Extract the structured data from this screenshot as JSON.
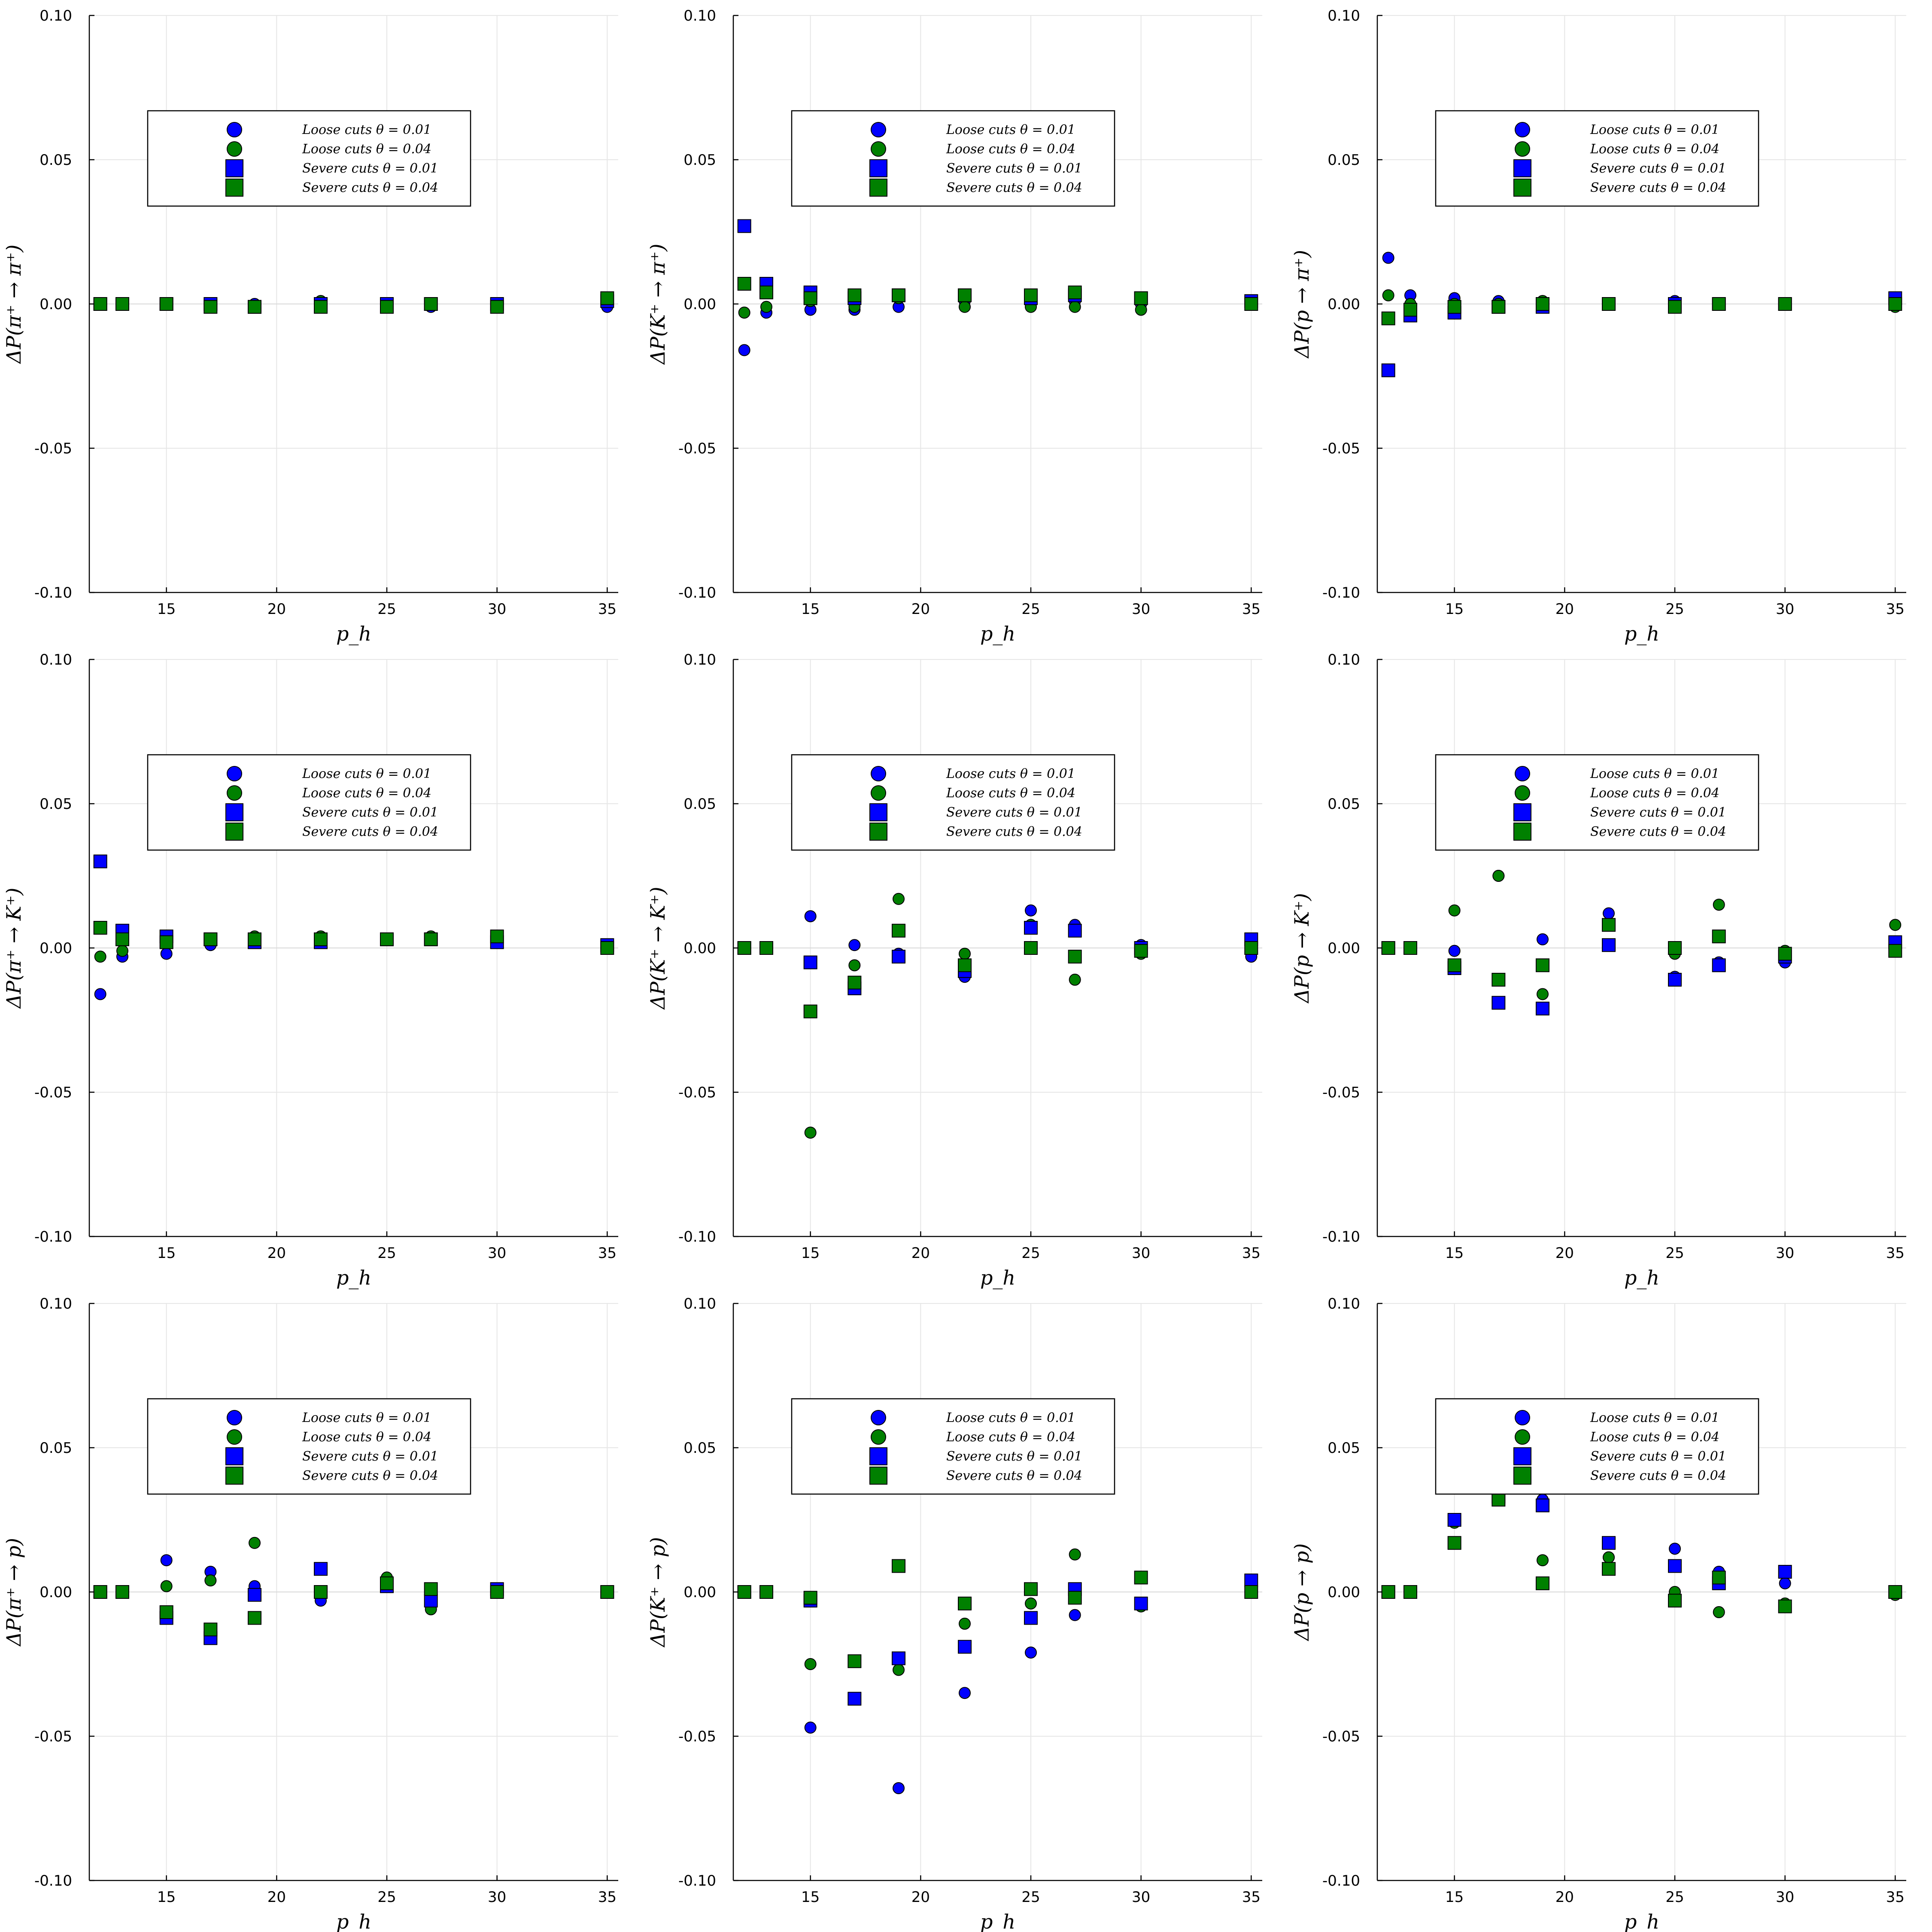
{
  "colors": {
    "loose_01": "#0000ff",
    "loose_04": "#008000",
    "severe_01": "#0000ff",
    "severe_04": "#008000"
  },
  "legend": [
    "Loose cuts θ = 0.01",
    "Loose cuts θ = 0.04",
    "Severe cuts θ = 0.01",
    "Severe cuts θ = 0.04"
  ],
  "chart_data": [
    {
      "type": "scatter",
      "ylabel": "ΔP(π⁺ → π⁺)",
      "xlabel": "p_h",
      "xlim": [
        11.5,
        35.5
      ],
      "ylim": [
        -0.1,
        0.1
      ],
      "xticks": [
        "15",
        "20",
        "25",
        "30",
        "35"
      ],
      "yticks": [
        "0.10",
        "0.05",
        "0.00",
        "-0.05",
        "-0.10"
      ],
      "x": [
        12,
        13,
        15,
        17,
        19,
        22,
        25,
        27,
        30,
        35
      ],
      "series": [
        {
          "name": "Loose cuts θ = 0.01",
          "marker": "circle",
          "values": [
            0.0,
            0.0,
            0.0,
            0.0,
            0.0,
            0.001,
            0.0,
            -0.001,
            0.0,
            -0.001
          ]
        },
        {
          "name": "Loose cuts θ = 0.04",
          "marker": "circle",
          "values": [
            0.0,
            0.0,
            0.0,
            0.0,
            -0.001,
            0.001,
            0.0,
            0.0,
            -0.001,
            0.001
          ]
        },
        {
          "name": "Severe cuts θ = 0.01",
          "marker": "square",
          "values": [
            0.0,
            0.0,
            0.0,
            0.0,
            -0.001,
            0.0,
            0.0,
            0.0,
            0.0,
            0.001
          ]
        },
        {
          "name": "Severe cuts θ = 0.04",
          "marker": "square",
          "values": [
            0.0,
            0.0,
            0.0,
            -0.001,
            -0.001,
            -0.001,
            -0.001,
            0.0,
            -0.001,
            0.002
          ]
        }
      ]
    },
    {
      "type": "scatter",
      "ylabel": "ΔP(K⁺ → π⁺)",
      "xlabel": "p_h",
      "xlim": [
        11.5,
        35.5
      ],
      "ylim": [
        -0.1,
        0.1
      ],
      "xticks": [
        "15",
        "20",
        "25",
        "30",
        "35"
      ],
      "yticks": [
        "0.10",
        "0.05",
        "0.00",
        "-0.05",
        "-0.10"
      ],
      "x": [
        12,
        13,
        15,
        17,
        19,
        22,
        25,
        27,
        30,
        35
      ],
      "series": [
        {
          "name": "Loose cuts θ = 0.01",
          "marker": "circle",
          "values": [
            -0.016,
            -0.003,
            -0.002,
            -0.002,
            -0.001,
            0.001,
            0.0,
            0.001,
            0.0,
            0.0
          ]
        },
        {
          "name": "Loose cuts θ = 0.04",
          "marker": "circle",
          "values": [
            -0.003,
            -0.001,
            0.001,
            -0.001,
            0.002,
            -0.001,
            -0.001,
            -0.001,
            -0.002,
            0.0
          ]
        },
        {
          "name": "Severe cuts θ = 0.01",
          "marker": "square",
          "values": [
            0.027,
            0.007,
            0.004,
            0.002,
            0.003,
            0.003,
            0.002,
            0.003,
            0.002,
            0.001
          ]
        },
        {
          "name": "Severe cuts θ = 0.04",
          "marker": "square",
          "values": [
            0.007,
            0.004,
            0.002,
            0.003,
            0.003,
            0.003,
            0.003,
            0.004,
            0.002,
            0.0
          ]
        }
      ]
    },
    {
      "type": "scatter",
      "ylabel": "ΔP(p → π⁺)",
      "xlabel": "p_h",
      "xlim": [
        11.5,
        35.5
      ],
      "ylim": [
        -0.1,
        0.1
      ],
      "xticks": [
        "15",
        "20",
        "25",
        "30",
        "35"
      ],
      "yticks": [
        "0.10",
        "0.05",
        "0.00",
        "-0.05",
        "-0.10"
      ],
      "x": [
        12,
        13,
        15,
        17,
        19,
        22,
        25,
        27,
        30,
        35
      ],
      "series": [
        {
          "name": "Loose cuts θ = 0.01",
          "marker": "circle",
          "values": [
            0.016,
            0.003,
            0.002,
            0.001,
            0.001,
            0.0,
            0.001,
            0.0,
            0.0,
            0.001
          ]
        },
        {
          "name": "Loose cuts θ = 0.04",
          "marker": "circle",
          "values": [
            0.003,
            0.0,
            0.0,
            0.0,
            0.001,
            0.0,
            0.0,
            0.0,
            0.0,
            -0.001
          ]
        },
        {
          "name": "Severe cuts θ = 0.01",
          "marker": "square",
          "values": [
            -0.023,
            -0.004,
            -0.003,
            -0.001,
            -0.001,
            0.0,
            0.0,
            0.0,
            0.0,
            0.002
          ]
        },
        {
          "name": "Severe cuts θ = 0.04",
          "marker": "square",
          "values": [
            -0.005,
            -0.002,
            -0.001,
            -0.001,
            0.0,
            0.0,
            -0.001,
            0.0,
            0.0,
            0.0
          ]
        }
      ]
    },
    {
      "type": "scatter",
      "ylabel": "ΔP(π⁺ → K⁺)",
      "xlabel": "p_h",
      "xlim": [
        11.5,
        35.5
      ],
      "ylim": [
        -0.1,
        0.1
      ],
      "xticks": [
        "15",
        "20",
        "25",
        "30",
        "35"
      ],
      "yticks": [
        "0.10",
        "0.05",
        "0.00",
        "-0.05",
        "-0.10"
      ],
      "x": [
        12,
        13,
        15,
        17,
        19,
        22,
        25,
        27,
        30,
        35
      ],
      "series": [
        {
          "name": "Loose cuts θ = 0.01",
          "marker": "circle",
          "values": [
            -0.016,
            -0.003,
            -0.002,
            0.001,
            0.002,
            0.002,
            0.003,
            0.003,
            0.002,
            0.001
          ]
        },
        {
          "name": "Loose cuts θ = 0.04",
          "marker": "circle",
          "values": [
            -0.003,
            -0.001,
            0.002,
            0.003,
            0.004,
            0.004,
            0.003,
            0.004,
            0.004,
            0.0
          ]
        },
        {
          "name": "Severe cuts θ = 0.01",
          "marker": "square",
          "values": [
            0.03,
            0.006,
            0.004,
            0.003,
            0.002,
            0.002,
            0.003,
            0.003,
            0.002,
            0.001
          ]
        },
        {
          "name": "Severe cuts θ = 0.04",
          "marker": "square",
          "values": [
            0.007,
            0.003,
            0.002,
            0.003,
            0.003,
            0.003,
            0.003,
            0.003,
            0.004,
            0.0
          ]
        }
      ]
    },
    {
      "type": "scatter",
      "ylabel": "ΔP(K⁺ → K⁺)",
      "xlabel": "p_h",
      "xlim": [
        11.5,
        35.5
      ],
      "ylim": [
        -0.1,
        0.1
      ],
      "xticks": [
        "15",
        "20",
        "25",
        "30",
        "35"
      ],
      "yticks": [
        "0.10",
        "0.05",
        "0.00",
        "-0.05",
        "-0.10"
      ],
      "x": [
        12,
        13,
        15,
        17,
        19,
        22,
        25,
        27,
        30,
        35
      ],
      "series": [
        {
          "name": "Loose cuts θ = 0.01",
          "marker": "circle",
          "values": [
            0.0,
            0.0,
            0.011,
            0.001,
            -0.002,
            -0.01,
            0.013,
            0.008,
            0.001,
            -0.003
          ]
        },
        {
          "name": "Loose cuts θ = 0.04",
          "marker": "circle",
          "values": [
            0.0,
            0.0,
            -0.064,
            -0.006,
            0.017,
            -0.002,
            0.008,
            -0.011,
            -0.002,
            0.001
          ]
        },
        {
          "name": "Severe cuts θ = 0.01",
          "marker": "square",
          "values": [
            0.0,
            0.0,
            -0.005,
            -0.014,
            -0.003,
            -0.008,
            0.007,
            0.006,
            0.0,
            0.003
          ]
        },
        {
          "name": "Severe cuts θ = 0.04",
          "marker": "square",
          "values": [
            0.0,
            0.0,
            -0.022,
            -0.012,
            0.006,
            -0.006,
            0.0,
            -0.003,
            -0.001,
            0.0
          ]
        }
      ]
    },
    {
      "type": "scatter",
      "ylabel": "ΔP(p → K⁺)",
      "xlabel": "p_h",
      "xlim": [
        11.5,
        35.5
      ],
      "ylim": [
        -0.1,
        0.1
      ],
      "xticks": [
        "15",
        "20",
        "25",
        "30",
        "35"
      ],
      "yticks": [
        "0.10",
        "0.05",
        "0.00",
        "-0.05",
        "-0.10"
      ],
      "x": [
        12,
        13,
        15,
        17,
        19,
        22,
        25,
        27,
        30,
        35
      ],
      "series": [
        {
          "name": "Loose cuts θ = 0.01",
          "marker": "circle",
          "values": [
            0.0,
            0.0,
            -0.001,
            0.025,
            0.003,
            0.012,
            -0.01,
            -0.005,
            -0.005,
            -0.001
          ]
        },
        {
          "name": "Loose cuts θ = 0.04",
          "marker": "circle",
          "values": [
            0.0,
            0.0,
            0.013,
            0.025,
            -0.016,
            0.008,
            -0.002,
            0.015,
            -0.001,
            0.008
          ]
        },
        {
          "name": "Severe cuts θ = 0.01",
          "marker": "square",
          "values": [
            0.0,
            0.0,
            -0.007,
            -0.019,
            -0.021,
            0.001,
            -0.011,
            -0.006,
            -0.003,
            0.002
          ]
        },
        {
          "name": "Severe cuts θ = 0.04",
          "marker": "square",
          "values": [
            0.0,
            0.0,
            -0.006,
            -0.011,
            -0.006,
            0.008,
            0.0,
            0.004,
            -0.002,
            -0.001
          ]
        }
      ]
    },
    {
      "type": "scatter",
      "ylabel": "ΔP(π⁺ → p)",
      "xlabel": "p_h",
      "xlim": [
        11.5,
        35.5
      ],
      "ylim": [
        -0.1,
        0.1
      ],
      "xticks": [
        "15",
        "20",
        "25",
        "30",
        "35"
      ],
      "yticks": [
        "0.10",
        "0.05",
        "0.00",
        "-0.05",
        "-0.10"
      ],
      "x": [
        12,
        13,
        15,
        17,
        19,
        22,
        25,
        27,
        30,
        35
      ],
      "series": [
        {
          "name": "Loose cuts θ = 0.01",
          "marker": "circle",
          "values": [
            0.0,
            0.0,
            0.011,
            0.007,
            0.002,
            -0.003,
            0.003,
            -0.001,
            0.0,
            0.0
          ]
        },
        {
          "name": "Loose cuts θ = 0.04",
          "marker": "circle",
          "values": [
            0.0,
            0.0,
            0.002,
            0.004,
            0.017,
            0.0,
            0.005,
            -0.006,
            0.0,
            0.0
          ]
        },
        {
          "name": "Severe cuts θ = 0.01",
          "marker": "square",
          "values": [
            0.0,
            0.0,
            -0.009,
            -0.016,
            -0.001,
            0.008,
            0.002,
            -0.003,
            0.001,
            0.0
          ]
        },
        {
          "name": "Severe cuts θ = 0.04",
          "marker": "square",
          "values": [
            0.0,
            0.0,
            -0.007,
            -0.013,
            -0.009,
            0.0,
            0.003,
            0.001,
            0.0,
            0.0
          ]
        }
      ]
    },
    {
      "type": "scatter",
      "ylabel": "ΔP(K⁺ → p)",
      "xlabel": "p_h",
      "xlim": [
        11.5,
        35.5
      ],
      "ylim": [
        -0.1,
        0.1
      ],
      "xticks": [
        "15",
        "20",
        "25",
        "30",
        "35"
      ],
      "yticks": [
        "0.10",
        "0.05",
        "0.00",
        "-0.05",
        "-0.10"
      ],
      "x": [
        12,
        13,
        15,
        17,
        19,
        22,
        25,
        27,
        30,
        35
      ],
      "series": [
        {
          "name": "Loose cuts θ = 0.01",
          "marker": "circle",
          "values": [
            0.0,
            0.0,
            -0.047,
            -0.037,
            -0.068,
            -0.035,
            -0.021,
            -0.008,
            -0.004,
            0.003
          ]
        },
        {
          "name": "Loose cuts θ = 0.04",
          "marker": "circle",
          "values": [
            0.0,
            0.0,
            -0.025,
            -0.024,
            -0.027,
            -0.011,
            -0.004,
            0.013,
            -0.005,
            0.0
          ]
        },
        {
          "name": "Severe cuts θ = 0.01",
          "marker": "square",
          "values": [
            0.0,
            0.0,
            -0.003,
            -0.037,
            -0.023,
            -0.019,
            -0.009,
            0.001,
            -0.004,
            0.004
          ]
        },
        {
          "name": "Severe cuts θ = 0.04",
          "marker": "square",
          "values": [
            0.0,
            0.0,
            -0.002,
            -0.024,
            0.009,
            -0.004,
            0.001,
            -0.002,
            0.005,
            0.0
          ]
        }
      ]
    },
    {
      "type": "scatter",
      "ylabel": "ΔP(p → p)",
      "xlabel": "p_h",
      "xlim": [
        11.5,
        35.5
      ],
      "ylim": [
        -0.1,
        0.1
      ],
      "xticks": [
        "15",
        "20",
        "25",
        "30",
        "35"
      ],
      "yticks": [
        "0.10",
        "0.05",
        "0.00",
        "-0.05",
        "-0.10"
      ],
      "x": [
        12,
        13,
        15,
        17,
        19,
        22,
        25,
        27,
        30,
        35
      ],
      "series": [
        {
          "name": "Loose cuts θ = 0.01",
          "marker": "circle",
          "values": [
            0.0,
            0.0,
            0.025,
            0.033,
            0.032,
            0.012,
            0.015,
            0.007,
            0.003,
            -0.001
          ]
        },
        {
          "name": "Loose cuts θ = 0.04",
          "marker": "circle",
          "values": [
            0.0,
            0.0,
            0.024,
            0.034,
            0.011,
            0.012,
            0.0,
            -0.007,
            -0.004,
            -0.001
          ]
        },
        {
          "name": "Severe cuts θ = 0.01",
          "marker": "square",
          "values": [
            0.0,
            0.0,
            0.025,
            0.033,
            0.03,
            0.017,
            0.009,
            0.003,
            0.007,
            0.0
          ]
        },
        {
          "name": "Severe cuts θ = 0.04",
          "marker": "square",
          "values": [
            0.0,
            0.0,
            0.017,
            0.032,
            0.003,
            0.008,
            -0.003,
            0.005,
            -0.005,
            0.0
          ]
        }
      ]
    }
  ]
}
